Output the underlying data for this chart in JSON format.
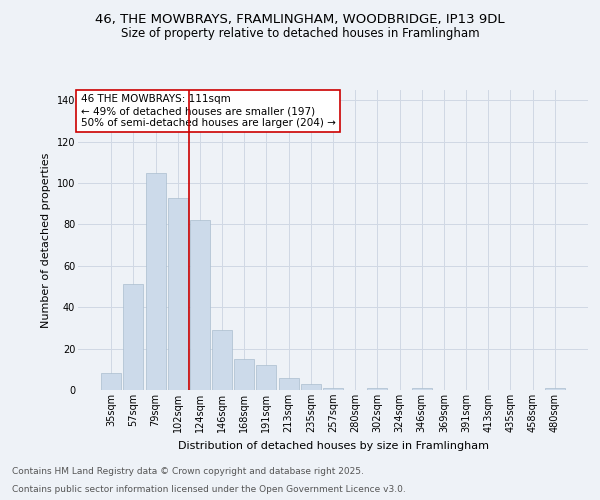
{
  "title1": "46, THE MOWBRAYS, FRAMLINGHAM, WOODBRIDGE, IP13 9DL",
  "title2": "Size of property relative to detached houses in Framlingham",
  "xlabel": "Distribution of detached houses by size in Framlingham",
  "ylabel": "Number of detached properties",
  "categories": [
    "35sqm",
    "57sqm",
    "79sqm",
    "102sqm",
    "124sqm",
    "146sqm",
    "168sqm",
    "191sqm",
    "213sqm",
    "235sqm",
    "257sqm",
    "280sqm",
    "302sqm",
    "324sqm",
    "346sqm",
    "369sqm",
    "391sqm",
    "413sqm",
    "435sqm",
    "458sqm",
    "480sqm"
  ],
  "values": [
    8,
    51,
    105,
    93,
    82,
    29,
    15,
    12,
    6,
    3,
    1,
    0,
    1,
    0,
    1,
    0,
    0,
    0,
    0,
    0,
    1
  ],
  "bar_color": "#ccdaea",
  "bar_edgecolor": "#aabdce",
  "vline_x": 3.5,
  "vline_color": "#cc0000",
  "annotation_text": "46 THE MOWBRAYS: 111sqm\n← 49% of detached houses are smaller (197)\n50% of semi-detached houses are larger (204) →",
  "annotation_box_edgecolor": "#cc0000",
  "ylim": [
    0,
    145
  ],
  "yticks": [
    0,
    20,
    40,
    60,
    80,
    100,
    120,
    140
  ],
  "footer1": "Contains HM Land Registry data © Crown copyright and database right 2025.",
  "footer2": "Contains public sector information licensed under the Open Government Licence v3.0.",
  "bg_color": "#eef2f7",
  "plot_bg_color": "#eef2f7",
  "grid_color": "#d0d8e4",
  "title1_fontsize": 9.5,
  "title2_fontsize": 8.5,
  "xlabel_fontsize": 8,
  "ylabel_fontsize": 8,
  "tick_fontsize": 7,
  "annotation_fontsize": 7.5,
  "footer_fontsize": 6.5
}
